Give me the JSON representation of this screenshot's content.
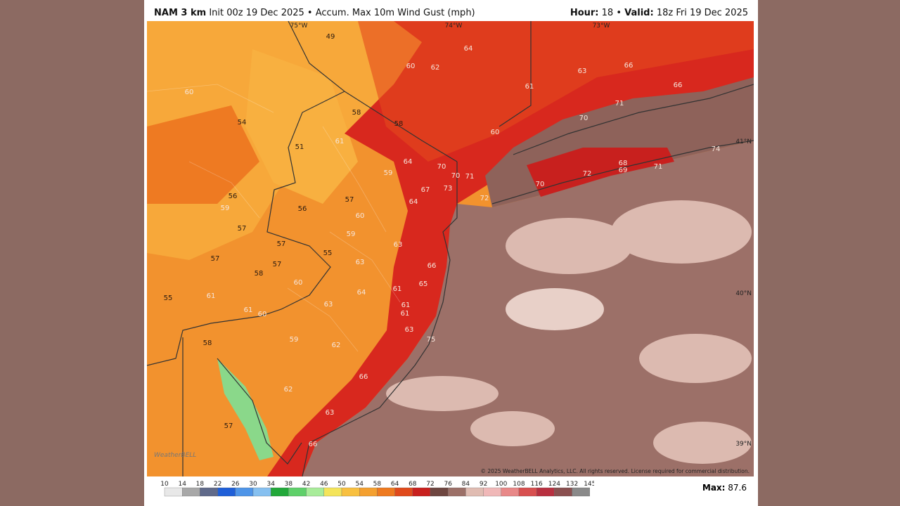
{
  "header": {
    "model": "NAM 3 km",
    "init": "Init 00z 19 Dec 2025",
    "separator": "•",
    "product": "Accum. Max 10m Wind Gust (mph)",
    "hour_label": "Hour:",
    "hour": 18,
    "valid_label": "Valid:",
    "valid": "18z Fri 19 Dec 2025"
  },
  "map": {
    "values": [
      49,
      64,
      60,
      62,
      63,
      66,
      66,
      60,
      61,
      71,
      58,
      58,
      70,
      54,
      60,
      51,
      61,
      74,
      64,
      70,
      70,
      71,
      68,
      69,
      71,
      72,
      59,
      70,
      67,
      73,
      72,
      56,
      59,
      56,
      57,
      64,
      60,
      57,
      59,
      57,
      63,
      55,
      57,
      57,
      63,
      66,
      58,
      60,
      65,
      61,
      64,
      55,
      61,
      63,
      61,
      61,
      60,
      61,
      63,
      75,
      59,
      58,
      62,
      66,
      62,
      63,
      57,
      66
    ],
    "longitudes": [
      "75°W",
      "74°W",
      "73°W"
    ],
    "latitudes": [
      "41°N",
      "40°N",
      "39°N"
    ],
    "copyright": "© 2025 WeatherBELL Analytics, LLC. All rights reserved. License required for commercial distribution.",
    "logo": "WeatherBELL"
  },
  "colorbar": {
    "ticks": [
      10,
      14,
      18,
      22,
      26,
      30,
      34,
      38,
      42,
      46,
      50,
      54,
      58,
      64,
      68,
      72,
      76,
      84,
      92,
      100,
      108,
      116,
      124,
      132,
      145
    ],
    "colors": [
      "#e8e8e8",
      "#a8a8a8",
      "#606a8a",
      "#1f5fd8",
      "#4f95e8",
      "#86c0f0",
      "#22a83a",
      "#5fd06a",
      "#a8ec9a",
      "#f4e45a",
      "#f8c040",
      "#f4a030",
      "#ee7a20",
      "#e04a1c",
      "#c8201e",
      "#6e4640",
      "#9c7068",
      "#e0bcb2",
      "#f0b8b8",
      "#e88888",
      "#d85050",
      "#b83040",
      "#8a5050",
      "#8a8a8a"
    ]
  },
  "max": {
    "label": "Max:",
    "value": 87.6
  }
}
